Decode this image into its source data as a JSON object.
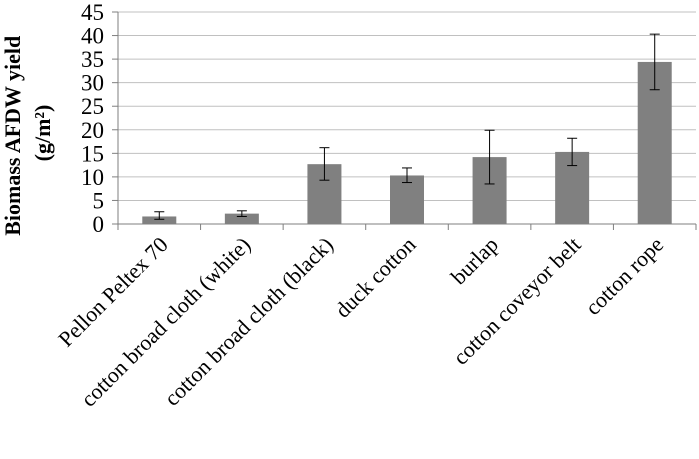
{
  "chart_data": {
    "type": "bar",
    "title": "",
    "xlabel": "",
    "ylabel_line1": "Biomass AFDW yield",
    "ylabel_line2": "(g/m²)",
    "ylim": [
      0,
      45
    ],
    "yticks": [
      0,
      5,
      10,
      15,
      20,
      25,
      30,
      35,
      40,
      45
    ],
    "grid": true,
    "legend": "none",
    "categories": [
      "Pellon Peltex 70",
      "cotton broad cloth (white)",
      "cotton broad cloth (black)",
      "duck cotton",
      "burlap",
      "cotton coveyor belt",
      "cotton rope"
    ],
    "values": [
      1.6,
      2.2,
      12.7,
      10.3,
      14.2,
      15.3,
      34.4
    ],
    "error_low": [
      1.0,
      1.6,
      9.3,
      8.8,
      8.5,
      12.4,
      28.5
    ],
    "error_high": [
      2.6,
      2.8,
      16.2,
      11.9,
      19.9,
      18.2,
      40.3
    ],
    "colors": {
      "bar": "#808080",
      "axis": "#7f7f7f",
      "grid": "#c0c0c0",
      "error": "#000000"
    }
  }
}
